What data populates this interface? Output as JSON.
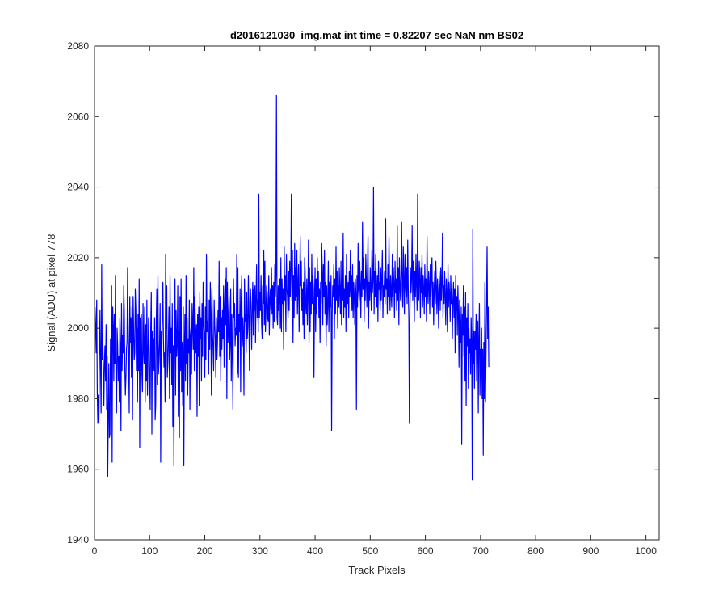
{
  "chart_data": {
    "type": "line",
    "title": "d2016121030_img.mat int time = 0.82207 sec  NaN nm BS02",
    "xlabel": "Track Pixels",
    "ylabel": "Signal (ADU) at pixel 778",
    "xlim": [
      0,
      1024
    ],
    "ylim": [
      1940,
      2080
    ],
    "xticks": [
      0,
      100,
      200,
      300,
      400,
      500,
      600,
      700,
      800,
      900,
      1000
    ],
    "yticks": [
      1940,
      1960,
      1980,
      2000,
      2020,
      2040,
      2060,
      2080
    ],
    "grid": false,
    "legend": "none",
    "series": [
      {
        "color": "#0000ff",
        "x_start": 1,
        "x_step": 1,
        "values": [
          2006,
          2000,
          1993,
          2008,
          1982,
          1973,
          1981,
          1973,
          1994,
          2005,
          1989,
          1976,
          2018,
          1991,
          1998,
          1988,
          1978,
          1990,
          1995,
          1985,
          2001,
          1977,
          1992,
          1958,
          1975,
          1990,
          1969,
          1970,
          1997,
          1980,
          2012,
          1962,
          2006,
          2001,
          1985,
          2004,
          1990,
          2015,
          1982,
          1976,
          2000,
          1995,
          1985,
          1992,
          1979,
          2003,
          1995,
          1971,
          2007,
          1988,
          1998,
          1993,
          2012,
          2005,
          1989,
          1981,
          1986,
          1994,
          1996,
          2017,
          2001,
          1991,
          1976,
          2009,
          1996,
          2003,
          1986,
          2006,
          1974,
          2009,
          2000,
          1991,
          1993,
          2011,
          2005,
          1988,
          2000,
          1979,
          2004,
          1988,
          2014,
          1966,
          2003,
          1995,
          2004,
          1987,
          1982,
          2007,
          1994,
          1990,
          2006,
          1979,
          2001,
          1985,
          2008,
          1981,
          1991,
          2003,
          1995,
          1986,
          1977,
          2000,
          2010,
          1970,
          1999,
          1989,
          1997,
          1988,
          2003,
          1974,
          1978,
          2001,
          2011,
          1984,
          2015,
          1987,
          1991,
          1996,
          2007,
          1962,
          1999,
          1995,
          2004,
          2013,
          1997,
          1989,
          1993,
          1979,
          2021,
          2000,
          2012,
          1986,
          1990,
          1997,
          2006,
          1980,
          2015,
          1993,
          2000,
          1984,
          2007,
          1972,
          1995,
          1961,
          2000,
          2014,
          1981,
          2005,
          1992,
          1996,
          2012,
          1975,
          1999,
          1969,
          2009,
          1988,
          2014,
          1982,
          1996,
          1978,
          2006,
          1961,
          1993,
          2004,
          1985,
          2015,
          1990,
          2003,
          1981,
          1997,
          1993,
          2008,
          1977,
          1998,
          2000,
          1987,
          2007,
          2001,
          1994,
          2017,
          1988,
          2009,
          2000,
          1993,
          2001,
          1975,
          2004,
          1992,
          2006,
          1978,
          2010,
          1997,
          2003,
          1985,
          2007,
          1992,
          2013,
          2001,
          1998,
          1986,
          2006,
          1991,
          2021,
          1999,
          2002,
          1996,
          1987,
          2008,
          1994,
          2013,
          2004,
          1981,
          2011,
          1999,
          1994,
          1988,
          2008,
          2001,
          1997,
          1986,
          2003,
          1991,
          1996,
          2005,
          1999,
          2019,
          1992,
          2009,
          1985,
          2003,
          1994,
          2005,
          1997,
          2012,
          1989,
          2006,
          2014,
          2001,
          2017,
          1980,
          2013,
          1996,
          2002,
          2009,
          1991,
          1996,
          2011,
          1985,
          2004,
          1993,
          1977,
          2014,
          2003,
          2007,
          1995,
          2000,
          1998,
          2021,
          1987,
          2017,
          1986,
          2004,
          1999,
          2011,
          1982,
          2008,
          2015,
          1995,
          2003,
          1998,
          1981,
          2014,
          2002,
          2004,
          1993,
          2010,
          1997,
          2000,
          2015,
          2003,
          1988,
          2009,
          2011,
          2003,
          1994,
          2007,
          2013,
          1998,
          2011,
          2005,
          2012,
          1996,
          2009,
          2018,
          2003,
          2008,
          1999,
          2038,
          2003,
          2010,
          2005,
          2015,
          2001,
          1997,
          2012,
          2007,
          2022,
          2001,
          2019,
          1999,
          2005,
          2012,
          2010,
          2003,
          2002,
          2015,
          1998,
          2008,
          2011,
          2005,
          2017,
          2004,
          2012,
          2000,
          2013,
          2002,
          2018,
          2009,
          2015,
          2066,
          2003,
          2001,
          2012,
          2005,
          2008,
          2014,
          2000,
          2020,
          1999,
          2014,
          2007,
          2011,
          1994,
          2023,
          2008,
          2015,
          1999,
          2021,
          2011,
          2009,
          2003,
          2016,
          2005,
          2019,
          2009,
          2016,
          2038,
          2008,
          2022,
          1996,
          2015,
          2003,
          2024,
          2008,
          2017,
          2009,
          2022,
          2004,
          2012,
          2018,
          1999,
          2007,
          2026,
          2012,
          2019,
          2005,
          2011,
          2001,
          2013,
          1997,
          2020,
          2016,
          2006,
          2004,
          2014,
          2001,
          2010,
          2025,
          1996,
          2017,
          1999,
          2013,
          2004,
          2021,
          2007,
          2015,
          2011,
          1986,
          2008,
          2017,
          1999,
          2014,
          2004,
          2020,
          2009,
          2016,
          2003,
          2011,
          1996,
          2013,
          2007,
          2024,
          2016,
          2001,
          2018,
          2009,
          2022,
          2004,
          2013,
          1995,
          2012,
          2001,
          2007,
          2019,
          1999,
          2013,
          2011,
          2006,
          2015,
          1971,
          2004,
          2012,
          2009,
          2018,
          1997,
          2014,
          2004,
          2023,
          2008,
          2016,
          2000,
          2012,
          2006,
          2017,
          2010,
          2004,
          2019,
          2001,
          2014,
          2008,
          2027,
          2003,
          2011,
          2006,
          2015,
          1999,
          2021,
          2012,
          2007,
          2013,
          2003,
          2016,
          2009,
          2022,
          2010,
          2015,
          2005,
          2018,
          2003,
          2013,
          2009,
          2001,
          2014,
          2010,
          1977,
          2015,
          2006,
          2024,
          2011,
          2008,
          2019,
          2012,
          2003,
          2016,
          2009,
          2030,
          2011,
          2020,
          2002,
          2014,
          2008,
          2021,
          2013,
          2006,
          2016,
          2026,
          2000,
          2013,
          2008,
          2017,
          2011,
          2005,
          2022,
          2010,
          2014,
          2040,
          2004,
          2016,
          2009,
          2021,
          2012,
          2006,
          2015,
          2002,
          2019,
          2011,
          2013,
          2005,
          2017,
          2008,
          2014,
          2022,
          2003,
          2012,
          2009,
          2016,
          2007,
          2031,
          2011,
          2014,
          2004,
          2018,
          2009,
          2026,
          2013,
          2005,
          2015,
          2010,
          2006,
          2021,
          2009,
          2017,
          2012,
          2003,
          2019,
          2010,
          2014,
          2005,
          2029,
          2008,
          2017,
          2001,
          2020,
          2012,
          2008,
          2015,
          2030,
          2011,
          2006,
          2023,
          2013,
          2004,
          2021,
          2012,
          2009,
          2017,
          2007,
          2025,
          2011,
          2003,
          1973,
          2005,
          2017,
          2010,
          2014,
          2029,
          2008,
          2019,
          2011,
          2002,
          2016,
          2009,
          2021,
          2012,
          2005,
          2038,
          2012,
          2008,
          2019,
          2014,
          2003,
          2017,
          2010,
          2021,
          2006,
          2015,
          2011,
          2004,
          2018,
          2009,
          2014,
          2002,
          2026,
          2011,
          2007,
          2016,
          2012,
          2004,
          2018,
          2009,
          2015,
          2020,
          2006,
          2013,
          2001,
          2011,
          2016,
          2007,
          2019,
          2012,
          2004,
          2014,
          2009,
          2000,
          2016,
          2011,
          2005,
          2017,
          2008,
          2013,
          2027,
          2003,
          2012,
          2007,
          2016,
          2009,
          2001,
          2014,
          2010,
          1999,
          2018,
          2006,
          2013,
          2009,
          2002,
          2015,
          2007,
          2011,
          1997,
          2008,
          2013,
          2003,
          2011,
          1993,
          2015,
          2005,
          2009,
          1998,
          2012,
          2004,
          1989,
          2008,
          2001,
          1996,
          2006,
          1967,
          2004,
          1998,
          2012,
          1992,
          2006,
          1985,
          2010,
          1978,
          2003,
          1995,
          2007,
          1983,
          2000,
          1993,
          1997,
          1987,
          2003,
          1995,
          1957,
          2028,
          1990,
          1999,
          1983,
          1999,
          1994,
          2004,
          1985,
          1993,
          2002,
          1976,
          1997,
          2007,
          1981,
          1994,
          1986,
          2000,
          1980,
          1994,
          1964,
          1996,
          1980,
          2013,
          1979,
          1992,
          2008,
          2023,
          1997,
          2006,
          1989
        ]
      }
    ]
  }
}
